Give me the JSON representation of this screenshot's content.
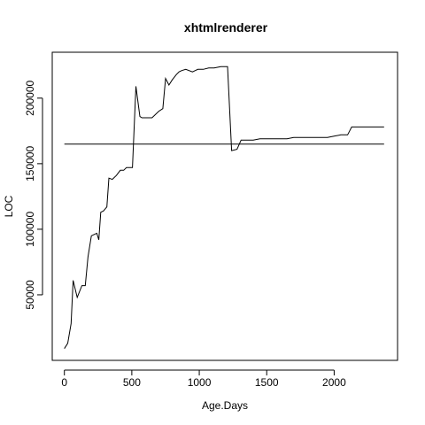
{
  "chart_data": {
    "type": "line",
    "title": "xhtmlrenderer",
    "xlabel": "Age.Days",
    "ylabel": "LOC",
    "xlim": [
      -90,
      2470
    ],
    "ylim": [
      0,
      235000
    ],
    "x_ticks": [
      0,
      500,
      1000,
      1500,
      2000
    ],
    "y_ticks": [
      50000,
      100000,
      150000,
      200000
    ],
    "x_tick_labels": [
      "0",
      "500",
      "1000",
      "1500",
      "2000"
    ],
    "y_tick_labels": [
      "50000",
      "100000",
      "150000",
      "200000"
    ],
    "grid": false,
    "series": [
      {
        "x": [
          0,
          25,
          50,
          65,
          95,
          130,
          155,
          175,
          200,
          240,
          255,
          270,
          290,
          315,
          330,
          355,
          385,
          415,
          440,
          460,
          480,
          505,
          530,
          560,
          575,
          590,
          610,
          650,
          700,
          730,
          750,
          775,
          800,
          830,
          850,
          870,
          900,
          950,
          970,
          990,
          1030,
          1070,
          1110,
          1160,
          1210,
          1240,
          1280,
          1310,
          1360,
          1400,
          1450,
          1510,
          1560,
          1600,
          1650,
          1700,
          1750,
          1800,
          1850,
          1900,
          1950,
          2000,
          2050,
          2100,
          2130,
          2200,
          2270,
          2370
        ],
        "y": [
          9000,
          13000,
          28000,
          61000,
          48000,
          57000,
          57000,
          79000,
          95000,
          97000,
          92000,
          113000,
          114000,
          117000,
          139000,
          138000,
          141000,
          145000,
          145000,
          147000,
          147000,
          147000,
          209000,
          186000,
          185000,
          185000,
          185000,
          185000,
          190000,
          192000,
          215000,
          210000,
          214000,
          218000,
          220000,
          221000,
          222000,
          220000,
          221000,
          222000,
          222000,
          223000,
          223000,
          224000,
          224000,
          160000,
          161000,
          168000,
          168000,
          168000,
          169000,
          169000,
          169000,
          169000,
          169000,
          170000,
          170000,
          170000,
          170000,
          170000,
          170000,
          171000,
          172000,
          172000,
          178000,
          178000,
          178000,
          178000
        ]
      },
      {
        "x": [
          0,
          2370
        ],
        "y": [
          165000,
          165000
        ]
      }
    ]
  }
}
